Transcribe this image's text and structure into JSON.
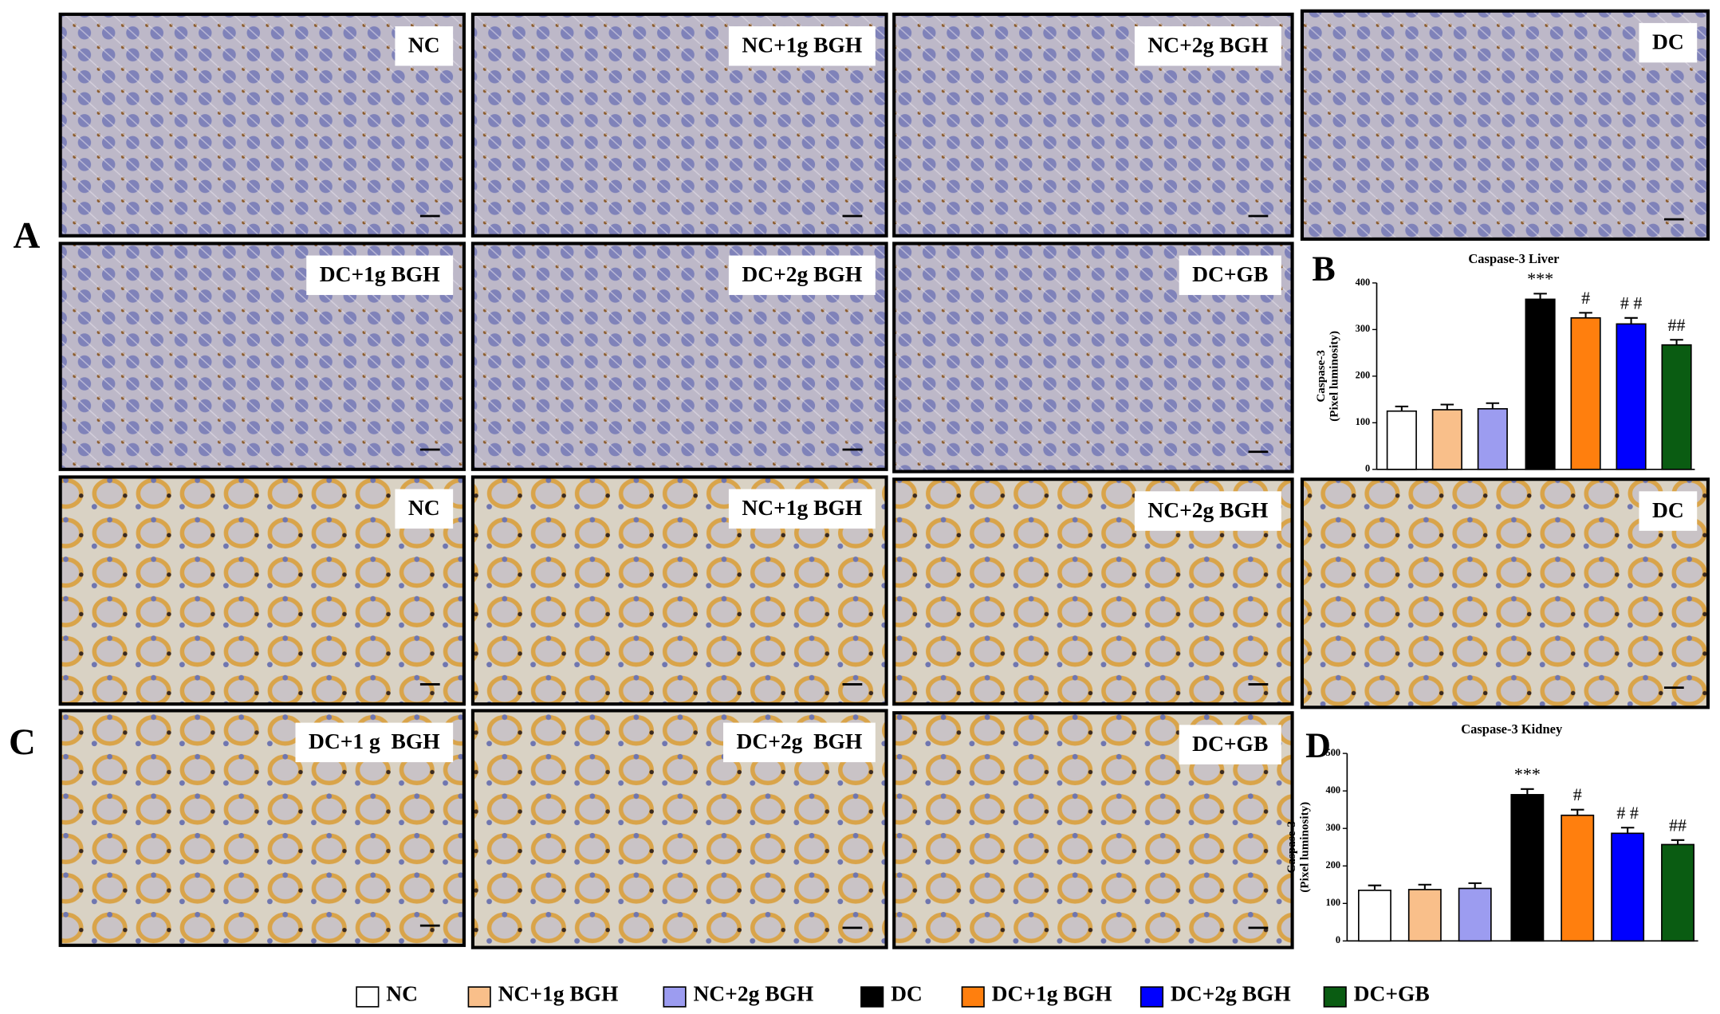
{
  "section_labels": [
    "A",
    "C"
  ],
  "micrographs": {
    "liver": [
      "NC",
      "NC+1g BGH",
      "NC+2g BGH",
      "DC",
      "DC+1g BGH",
      "DC+2g BGH",
      "DC+GB"
    ],
    "kidney": [
      "NC",
      "NC+1g BGH",
      "NC+2g BGH",
      "DC",
      "DC+1 g  BGH",
      "DC+2g  BGH",
      "DC+GB"
    ]
  },
  "legend": [
    {
      "name": "NC",
      "color": "#ffffff"
    },
    {
      "name": "NC+1g BGH",
      "color": "#f9bf8a"
    },
    {
      "name": "NC+2g BGH",
      "color": "#9c9cf0"
    },
    {
      "name": "DC",
      "color": "#000000"
    },
    {
      "name": "DC+1g BGH",
      "color": "#ff7f0e"
    },
    {
      "name": "DC+2g BGH",
      "color": "#0000ff"
    },
    {
      "name": "DC+GB",
      "color": "#0a5c12"
    }
  ],
  "chart_data": [
    {
      "type": "bar",
      "panel": "B",
      "title": "Caspase-3 Liver",
      "y_label": [
        "Caspase-3",
        "(Pixel luminosity)"
      ],
      "values": [
        125,
        128,
        130,
        365,
        325,
        312,
        267
      ],
      "errors": [
        10,
        11,
        12,
        12,
        11,
        13,
        11
      ],
      "annotations": [
        null,
        null,
        null,
        "***",
        "#",
        "# #",
        "##"
      ],
      "ylim": [
        0,
        400
      ],
      "yticks": [
        0,
        100,
        200,
        300,
        400
      ]
    },
    {
      "type": "bar",
      "panel": "D",
      "title": "Caspase-3 Kidney",
      "y_label": [
        "Caspase-3",
        "(Pixel luminosity)"
      ],
      "values": [
        135,
        137,
        140,
        390,
        335,
        287,
        257
      ],
      "errors": [
        13,
        13,
        14,
        15,
        15,
        15,
        12
      ],
      "annotations": [
        null,
        null,
        null,
        "***",
        "#",
        "# #",
        "##"
      ],
      "ylim": [
        0,
        500
      ],
      "yticks": [
        0,
        100,
        200,
        300,
        400,
        500
      ]
    }
  ]
}
